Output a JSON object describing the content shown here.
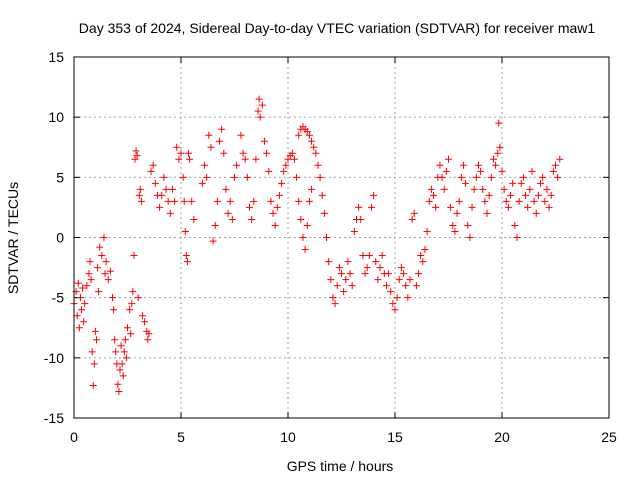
{
  "chart_data": {
    "type": "scatter",
    "title": "Day 353 of 2024, Sidereal Day-to-day VTEC variation (SDTVAR) for receiver maw1",
    "xlabel": "GPS time / hours",
    "ylabel": "SDTVAR / TECUs",
    "xlim": [
      0,
      25
    ],
    "ylim": [
      -15,
      15
    ],
    "xticks": [
      0,
      5,
      10,
      15,
      20,
      25
    ],
    "yticks": [
      -15,
      -10,
      -5,
      0,
      5,
      10,
      15
    ],
    "grid": true,
    "marker": "+",
    "series": [
      {
        "name": "SDTVAR",
        "color": "#ff0000",
        "points": [
          [
            0.0,
            -5.5
          ],
          [
            0.1,
            -4.5
          ],
          [
            0.15,
            -6.5
          ],
          [
            0.2,
            -3.8
          ],
          [
            0.25,
            -7.5
          ],
          [
            0.3,
            -5.0
          ],
          [
            0.35,
            -6.0
          ],
          [
            0.4,
            -4.2
          ],
          [
            0.45,
            -7.0
          ],
          [
            0.5,
            -5.5
          ],
          [
            0.6,
            -4.0
          ],
          [
            0.7,
            -3.0
          ],
          [
            0.75,
            -2.0
          ],
          [
            0.8,
            -3.5
          ],
          [
            0.85,
            -9.5
          ],
          [
            0.9,
            -12.3
          ],
          [
            0.95,
            -10.5
          ],
          [
            1.0,
            -7.8
          ],
          [
            1.05,
            -8.5
          ],
          [
            1.1,
            -2.5
          ],
          [
            1.15,
            -4.5
          ],
          [
            1.2,
            -0.8
          ],
          [
            1.3,
            -1.5
          ],
          [
            1.4,
            0.0
          ],
          [
            1.45,
            -3.0
          ],
          [
            1.5,
            -2.0
          ],
          [
            1.6,
            -3.5
          ],
          [
            1.7,
            -2.8
          ],
          [
            1.8,
            -5.0
          ],
          [
            1.85,
            -6.0
          ],
          [
            1.9,
            -8.5
          ],
          [
            1.95,
            -9.5
          ],
          [
            2.0,
            -10.5
          ],
          [
            2.05,
            -12.2
          ],
          [
            2.1,
            -12.8
          ],
          [
            2.15,
            -11.0
          ],
          [
            2.2,
            -9.0
          ],
          [
            2.25,
            -10.5
          ],
          [
            2.3,
            -11.5
          ],
          [
            2.35,
            -9.5
          ],
          [
            2.4,
            -8.5
          ],
          [
            2.45,
            -10.0
          ],
          [
            2.5,
            -7.5
          ],
          [
            2.6,
            -6.0
          ],
          [
            2.65,
            -8.0
          ],
          [
            2.7,
            -5.5
          ],
          [
            2.75,
            -4.5
          ],
          [
            2.8,
            -1.5
          ],
          [
            2.85,
            6.5
          ],
          [
            2.9,
            7.2
          ],
          [
            2.95,
            6.8
          ],
          [
            3.0,
            -5.0
          ],
          [
            3.05,
            3.5
          ],
          [
            3.1,
            4.0
          ],
          [
            3.15,
            3.0
          ],
          [
            3.2,
            -6.5
          ],
          [
            3.3,
            -7.0
          ],
          [
            3.4,
            -7.8
          ],
          [
            3.45,
            -8.5
          ],
          [
            3.5,
            -8.0
          ],
          [
            3.6,
            5.5
          ],
          [
            3.7,
            6.0
          ],
          [
            3.8,
            4.5
          ],
          [
            3.9,
            3.5
          ],
          [
            4.0,
            2.5
          ],
          [
            4.1,
            3.5
          ],
          [
            4.2,
            5.0
          ],
          [
            4.3,
            4.0
          ],
          [
            4.4,
            3.0
          ],
          [
            4.5,
            2.0
          ],
          [
            4.6,
            4.0
          ],
          [
            4.7,
            3.0
          ],
          [
            4.8,
            7.5
          ],
          [
            4.9,
            6.5
          ],
          [
            5.0,
            7.0
          ],
          [
            5.1,
            5.0
          ],
          [
            5.15,
            3.0
          ],
          [
            5.2,
            0.5
          ],
          [
            5.25,
            -1.5
          ],
          [
            5.3,
            -2.0
          ],
          [
            5.35,
            7.0
          ],
          [
            5.4,
            6.5
          ],
          [
            5.5,
            3.0
          ],
          [
            5.6,
            1.5
          ],
          [
            6.0,
            4.5
          ],
          [
            6.1,
            6.0
          ],
          [
            6.2,
            5.0
          ],
          [
            6.3,
            8.5
          ],
          [
            6.4,
            7.5
          ],
          [
            6.5,
            -0.3
          ],
          [
            6.6,
            1.0
          ],
          [
            6.7,
            3.0
          ],
          [
            6.8,
            8.0
          ],
          [
            6.9,
            9.0
          ],
          [
            7.0,
            7.0
          ],
          [
            7.1,
            4.0
          ],
          [
            7.2,
            2.0
          ],
          [
            7.3,
            3.0
          ],
          [
            7.4,
            1.5
          ],
          [
            7.5,
            5.0
          ],
          [
            7.6,
            6.0
          ],
          [
            7.8,
            8.5
          ],
          [
            7.9,
            7.0
          ],
          [
            8.0,
            6.5
          ],
          [
            8.1,
            5.0
          ],
          [
            8.2,
            2.5
          ],
          [
            8.3,
            1.5
          ],
          [
            8.4,
            3.0
          ],
          [
            8.5,
            6.5
          ],
          [
            8.6,
            10.5
          ],
          [
            8.65,
            11.5
          ],
          [
            8.7,
            10.0
          ],
          [
            8.8,
            11.0
          ],
          [
            8.9,
            8.0
          ],
          [
            9.0,
            7.0
          ],
          [
            9.1,
            5.5
          ],
          [
            9.2,
            3.0
          ],
          [
            9.3,
            2.0
          ],
          [
            9.4,
            1.0
          ],
          [
            9.5,
            2.5
          ],
          [
            9.6,
            3.5
          ],
          [
            9.7,
            4.5
          ],
          [
            9.8,
            5.5
          ],
          [
            9.9,
            6.0
          ],
          [
            10.0,
            6.5
          ],
          [
            10.1,
            6.8
          ],
          [
            10.2,
            7.0
          ],
          [
            10.3,
            6.5
          ],
          [
            10.4,
            5.0
          ],
          [
            10.5,
            3.0
          ],
          [
            10.6,
            1.5
          ],
          [
            10.7,
            0.0
          ],
          [
            10.8,
            -1.0
          ],
          [
            10.9,
            1.0
          ],
          [
            11.0,
            3.0
          ],
          [
            11.1,
            4.0
          ],
          [
            10.5,
            8.5
          ],
          [
            10.6,
            9.0
          ],
          [
            10.7,
            9.2
          ],
          [
            10.8,
            9.0
          ],
          [
            10.9,
            8.8
          ],
          [
            11.0,
            8.5
          ],
          [
            11.1,
            8.0
          ],
          [
            11.2,
            7.5
          ],
          [
            11.3,
            7.0
          ],
          [
            11.4,
            6.0
          ],
          [
            11.5,
            5.0
          ],
          [
            11.6,
            3.5
          ],
          [
            11.7,
            2.0
          ],
          [
            11.8,
            0.0
          ],
          [
            11.9,
            -2.0
          ],
          [
            12.0,
            -3.5
          ],
          [
            12.1,
            -5.0
          ],
          [
            12.2,
            -5.5
          ],
          [
            12.3,
            -4.0
          ],
          [
            12.4,
            -2.5
          ],
          [
            12.5,
            -3.0
          ],
          [
            12.6,
            -4.5
          ],
          [
            12.7,
            -3.5
          ],
          [
            12.8,
            -2.0
          ],
          [
            12.9,
            -3.0
          ],
          [
            13.0,
            -4.0
          ],
          [
            13.1,
            0.5
          ],
          [
            13.2,
            1.5
          ],
          [
            13.3,
            2.5
          ],
          [
            13.4,
            1.5
          ],
          [
            13.5,
            -1.5
          ],
          [
            13.6,
            -3.0
          ],
          [
            13.7,
            -2.5
          ],
          [
            13.8,
            -1.5
          ],
          [
            13.9,
            2.5
          ],
          [
            14.0,
            3.5
          ],
          [
            14.1,
            -2.0
          ],
          [
            14.2,
            -3.5
          ],
          [
            14.3,
            -2.5
          ],
          [
            14.4,
            -1.5
          ],
          [
            14.5,
            -3.0
          ],
          [
            14.6,
            -4.0
          ],
          [
            14.7,
            -3.0
          ],
          [
            14.8,
            -4.5
          ],
          [
            14.9,
            -5.5
          ],
          [
            15.0,
            -6.0
          ],
          [
            15.1,
            -5.0
          ],
          [
            15.2,
            -3.5
          ],
          [
            15.3,
            -2.5
          ],
          [
            15.4,
            -3.0
          ],
          [
            15.5,
            -4.0
          ],
          [
            15.6,
            -5.0
          ],
          [
            15.7,
            -3.5
          ],
          [
            15.8,
            1.5
          ],
          [
            15.9,
            2.0
          ],
          [
            16.0,
            -4.0
          ],
          [
            16.1,
            -3.0
          ],
          [
            16.2,
            -1.5
          ],
          [
            16.3,
            -2.0
          ],
          [
            16.4,
            -1.0
          ],
          [
            16.5,
            0.5
          ],
          [
            16.6,
            3.0
          ],
          [
            16.7,
            4.0
          ],
          [
            16.8,
            3.5
          ],
          [
            16.9,
            2.5
          ],
          [
            17.0,
            5.0
          ],
          [
            17.1,
            6.0
          ],
          [
            17.2,
            5.0
          ],
          [
            17.3,
            4.0
          ],
          [
            17.4,
            5.5
          ],
          [
            17.5,
            6.5
          ],
          [
            17.6,
            2.5
          ],
          [
            17.7,
            1.0
          ],
          [
            17.8,
            0.5
          ],
          [
            17.9,
            2.0
          ],
          [
            18.0,
            3.0
          ],
          [
            18.1,
            5.0
          ],
          [
            18.2,
            6.0
          ],
          [
            18.3,
            4.5
          ],
          [
            18.4,
            1.0
          ],
          [
            18.5,
            0.0
          ],
          [
            18.6,
            2.5
          ],
          [
            18.7,
            4.0
          ],
          [
            18.8,
            5.0
          ],
          [
            18.9,
            6.0
          ],
          [
            19.0,
            5.5
          ],
          [
            19.1,
            4.0
          ],
          [
            19.2,
            3.0
          ],
          [
            19.3,
            2.0
          ],
          [
            19.4,
            3.5
          ],
          [
            19.5,
            5.0
          ],
          [
            19.6,
            6.5
          ],
          [
            19.7,
            6.0
          ],
          [
            19.8,
            7.0
          ],
          [
            19.85,
            9.5
          ],
          [
            19.9,
            7.5
          ],
          [
            20.0,
            5.5
          ],
          [
            20.1,
            4.0
          ],
          [
            20.2,
            3.0
          ],
          [
            20.3,
            2.5
          ],
          [
            20.4,
            3.5
          ],
          [
            20.5,
            4.5
          ],
          [
            20.6,
            1.0
          ],
          [
            20.7,
            0.0
          ],
          [
            20.8,
            3.0
          ],
          [
            20.9,
            4.5
          ],
          [
            21.0,
            5.0
          ],
          [
            21.1,
            3.5
          ],
          [
            21.2,
            2.5
          ],
          [
            21.3,
            4.0
          ],
          [
            21.4,
            5.5
          ],
          [
            21.5,
            3.0
          ],
          [
            21.6,
            2.0
          ],
          [
            21.7,
            3.5
          ],
          [
            21.8,
            4.5
          ],
          [
            21.9,
            5.0
          ],
          [
            22.0,
            3.0
          ],
          [
            22.1,
            4.0
          ],
          [
            22.2,
            2.5
          ],
          [
            22.3,
            3.5
          ],
          [
            22.4,
            5.5
          ],
          [
            22.5,
            6.0
          ],
          [
            22.6,
            5.0
          ],
          [
            22.7,
            6.5
          ]
        ]
      }
    ]
  }
}
